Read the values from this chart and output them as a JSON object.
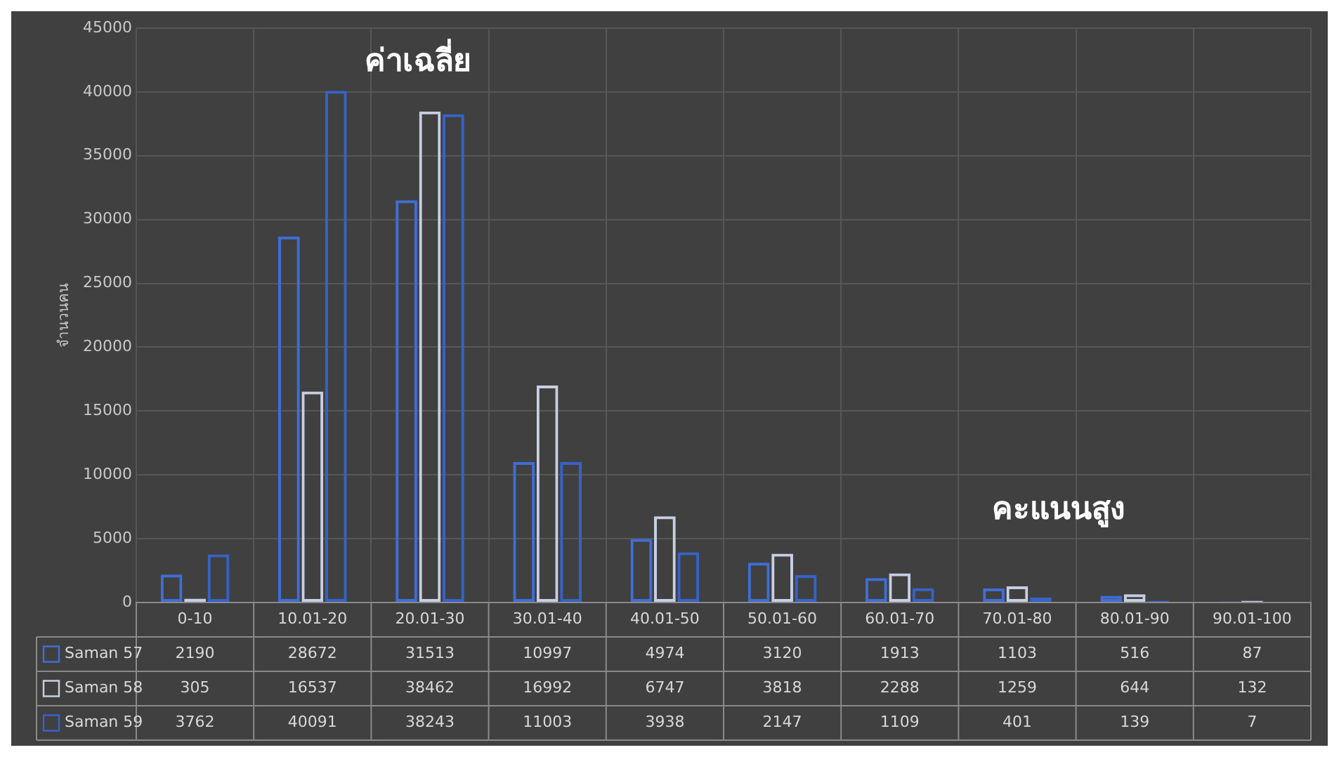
{
  "chart_data": {
    "type": "bar",
    "ylabel": "จำนวนคน",
    "categories": [
      "0-10",
      "10.01-20",
      "20.01-30",
      "30.01-40",
      "40.01-50",
      "50.01-60",
      "60.01-70",
      "70.01-80",
      "80.01-90",
      "90.01-100"
    ],
    "series": [
      {
        "name": "Saman 57",
        "color": "#3f6fd6",
        "values": [
          2190,
          28672,
          31513,
          10997,
          4974,
          3120,
          1913,
          1103,
          516,
          87
        ]
      },
      {
        "name": "Saman 58",
        "color": "#c9cfe3",
        "values": [
          305,
          16537,
          38462,
          16992,
          6747,
          3818,
          2288,
          1259,
          644,
          132
        ]
      },
      {
        "name": "Saman 59",
        "color": "#3563c8",
        "values": [
          3762,
          40091,
          38243,
          11003,
          3938,
          2147,
          1109,
          401,
          139,
          7
        ]
      }
    ],
    "ylim": [
      0,
      45000
    ],
    "yticks": [
      0,
      5000,
      10000,
      15000,
      20000,
      25000,
      30000,
      35000,
      40000,
      45000
    ],
    "grid": true,
    "legend": "bottom",
    "data_labels": true,
    "annotations": [
      "ค่าเฉลี่ย",
      "คะแนนสูง"
    ]
  }
}
